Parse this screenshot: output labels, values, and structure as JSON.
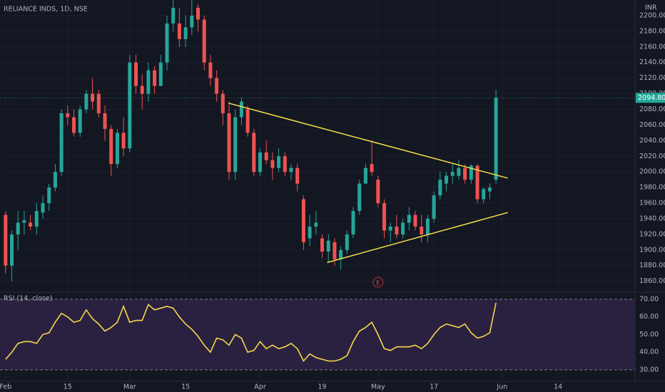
{
  "chart_data": [
    {
      "type": "candlestick",
      "title": "RELIANCE INDS, 1D, NSE",
      "currency": "INR",
      "up_color": "#26a69a",
      "down_color": "#ef5350",
      "open": [
        1945,
        1880,
        1920,
        1935,
        1935,
        1930,
        1948,
        1960,
        1980,
        2000,
        2075,
        2070,
        2050,
        2080,
        2100,
        2100,
        2075,
        2055,
        2010,
        2050,
        2030,
        2140,
        2110,
        2100,
        2130,
        2110,
        2140,
        2190,
        2190,
        2170,
        2185,
        2210,
        2195,
        2140,
        2120,
        2100,
        2075,
        2000,
        2070,
        2080,
        2050,
        2000,
        2025,
        2015,
        2005,
        2020,
        2000,
        2005,
        1965,
        1915,
        1930,
        1915,
        1898,
        1910,
        1888,
        1900,
        1920,
        1950,
        1985,
        2010,
        1990,
        1960,
        1925,
        1930,
        1920,
        1935,
        1945,
        1930,
        1920,
        1940,
        1970,
        1985,
        1995,
        1995,
        2005,
        1990,
        2008,
        1965,
        1975,
        1990
      ],
      "high": [
        1950,
        1925,
        1950,
        1950,
        1945,
        1960,
        1970,
        1985,
        2010,
        2080,
        2085,
        2080,
        2085,
        2105,
        2120,
        2105,
        2085,
        2060,
        2055,
        2070,
        2150,
        2150,
        2125,
        2140,
        2135,
        2150,
        2200,
        2225,
        2210,
        2200,
        2225,
        2215,
        2200,
        2150,
        2130,
        2105,
        2090,
        2080,
        2095,
        2085,
        2055,
        2030,
        2040,
        2025,
        2030,
        2025,
        2010,
        2010,
        1970,
        1945,
        1950,
        1920,
        1920,
        1915,
        1905,
        1925,
        1955,
        1990,
        2010,
        2040,
        1995,
        1965,
        1935,
        1945,
        1940,
        1955,
        1950,
        1945,
        1945,
        1975,
        2000,
        2000,
        2010,
        2015,
        2010,
        2010,
        2010,
        1980,
        1985,
        2105
      ],
      "low": [
        1870,
        1860,
        1900,
        1920,
        1925,
        1920,
        1940,
        1950,
        1975,
        1995,
        2060,
        2045,
        2045,
        2075,
        2080,
        2070,
        2040,
        1995,
        2005,
        2020,
        2025,
        2100,
        2080,
        2090,
        2100,
        2110,
        2130,
        2180,
        2160,
        2160,
        2175,
        2180,
        2130,
        2110,
        2090,
        2060,
        1990,
        1990,
        2060,
        2045,
        1995,
        1995,
        2010,
        1990,
        2000,
        1995,
        1990,
        1975,
        1900,
        1905,
        1920,
        1890,
        1885,
        1880,
        1875,
        1895,
        1915,
        1945,
        1985,
        1995,
        1955,
        1915,
        1910,
        1915,
        1915,
        1925,
        1925,
        1910,
        1910,
        1935,
        1965,
        1975,
        1985,
        1990,
        1985,
        1985,
        1960,
        1960,
        1965,
        1985
      ],
      "close": [
        1880,
        1920,
        1935,
        1938,
        1930,
        1950,
        1960,
        1980,
        2000,
        2075,
        2070,
        2050,
        2080,
        2100,
        2090,
        2075,
        2055,
        2010,
        2050,
        2030,
        2140,
        2110,
        2100,
        2130,
        2110,
        2140,
        2190,
        2210,
        2170,
        2185,
        2200,
        2195,
        2140,
        2120,
        2100,
        2075,
        2000,
        2070,
        2090,
        2050,
        2000,
        2025,
        2015,
        2005,
        2020,
        2000,
        2005,
        1985,
        1910,
        1930,
        1935,
        1898,
        1912,
        1888,
        1900,
        1920,
        1950,
        1985,
        2005,
        2000,
        1960,
        1925,
        1930,
        1920,
        1935,
        1945,
        1930,
        1920,
        1940,
        1970,
        1990,
        1995,
        2000,
        2005,
        1990,
        2008,
        1965,
        1978,
        1980,
        2095
      ],
      "last_price": {
        "value": 2094.8,
        "label": "2094.80"
      },
      "trendlines": [
        {
          "color": "#f5e04a",
          "x": [
            35.9,
            80.9
          ],
          "y": [
            2088,
            1992
          ]
        },
        {
          "color": "#f5e04a",
          "x": [
            51.8,
            80.9
          ],
          "y": [
            1884,
            1948
          ]
        }
      ],
      "earnings": {
        "x": 60,
        "label": "E"
      },
      "xlim": [
        -0.9,
        101.4
      ],
      "ylim": [
        1846,
        2220
      ],
      "yticks": [
        {
          "value": 1860,
          "label": "1860.00"
        },
        {
          "value": 1880,
          "label": "1880.00"
        },
        {
          "value": 1900,
          "label": "1900.00"
        },
        {
          "value": 1920,
          "label": "1920.00"
        },
        {
          "value": 1940,
          "label": "1940.00"
        },
        {
          "value": 1960,
          "label": "1960.00"
        },
        {
          "value": 1980,
          "label": "1980.00"
        },
        {
          "value": 2000,
          "label": "2000.00"
        },
        {
          "value": 2020,
          "label": "2020.00"
        },
        {
          "value": 2040,
          "label": "2040.00"
        },
        {
          "value": 2060,
          "label": "2060.00"
        },
        {
          "value": 2080,
          "label": "2080.00"
        },
        {
          "value": 2100,
          "label": "2100.00"
        },
        {
          "value": 2120,
          "label": "2120.00"
        },
        {
          "value": 2140,
          "label": "2140.00"
        },
        {
          "value": 2160,
          "label": "2160.00"
        },
        {
          "value": 2180,
          "label": "2180.00"
        },
        {
          "value": 2200,
          "label": "2200.00"
        }
      ]
    },
    {
      "type": "line",
      "title": "RSI (14, close)",
      "color": "#f5d74a",
      "band_color": "#2a2140",
      "values": [
        36,
        40,
        45,
        46,
        46,
        45,
        50,
        51,
        57,
        62,
        60,
        57,
        58,
        64,
        59,
        56,
        52,
        54,
        57,
        66,
        57,
        58,
        58,
        67,
        64,
        65,
        66,
        65,
        60,
        56,
        53,
        49,
        44,
        40,
        48,
        47,
        44,
        50,
        48,
        40,
        41,
        46,
        42,
        44,
        42,
        43,
        45,
        42,
        35,
        39,
        37,
        36,
        35,
        35,
        36,
        38,
        46,
        52,
        54,
        57,
        50,
        42,
        41,
        43,
        43,
        43,
        44,
        42,
        45,
        50,
        54,
        56,
        55,
        54,
        56,
        51,
        48,
        49,
        51,
        68
      ],
      "band": [
        30,
        70
      ],
      "ylim": [
        23.5,
        74
      ],
      "yticks": [
        {
          "value": 30,
          "label": "30.00"
        },
        {
          "value": 40,
          "label": "40.00"
        },
        {
          "value": 50,
          "label": "50.00"
        },
        {
          "value": 60,
          "label": "60.00"
        },
        {
          "value": 70,
          "label": "70.00"
        }
      ],
      "xticks": [
        {
          "value": 0,
          "label": "Feb"
        },
        {
          "value": 10,
          "label": "15"
        },
        {
          "value": 20,
          "label": "Mar"
        },
        {
          "value": 29,
          "label": "15"
        },
        {
          "value": 41,
          "label": "Apr"
        },
        {
          "value": 51,
          "label": "19"
        },
        {
          "value": 60,
          "label": "May"
        },
        {
          "value": 69,
          "label": "17"
        },
        {
          "value": 80,
          "label": "Jun"
        },
        {
          "value": 89,
          "label": "14"
        }
      ]
    }
  ]
}
